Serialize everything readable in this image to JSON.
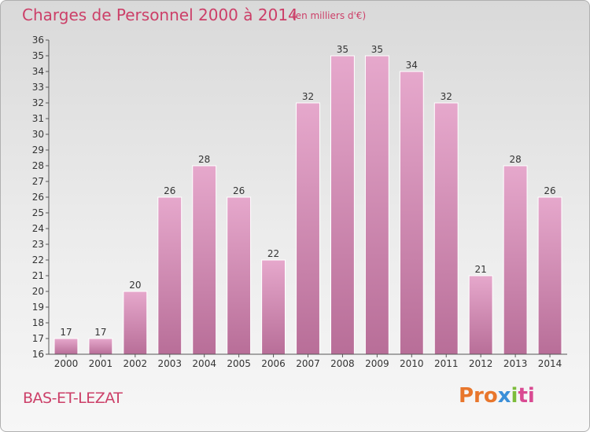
{
  "header": {
    "title": "Charges de Personnel 2000 à 2014",
    "subtitle": "(en milliers d'€)"
  },
  "footer": {
    "commune": "BAS-ET-LEZAT",
    "logo_parts": [
      "Pro",
      "x",
      "i",
      "ti"
    ]
  },
  "colors": {
    "bar_top": "#e6a8cc",
    "bar_bottom": "#b86e98",
    "title": "#cc3f68"
  },
  "chart_data": {
    "type": "bar",
    "title": "Charges de Personnel 2000 à 2014",
    "subtitle": "(en milliers d'€)",
    "xlabel": "",
    "ylabel": "",
    "categories": [
      "2000",
      "2001",
      "2002",
      "2003",
      "2004",
      "2005",
      "2006",
      "2007",
      "2008",
      "2009",
      "2010",
      "2011",
      "2012",
      "2013",
      "2014"
    ],
    "values": [
      17,
      17,
      20,
      26,
      28,
      26,
      22,
      32,
      35,
      35,
      34,
      32,
      21,
      28,
      26
    ],
    "ylim": [
      16,
      36
    ],
    "yticks": [
      16,
      17,
      18,
      19,
      20,
      21,
      22,
      23,
      24,
      25,
      26,
      27,
      28,
      29,
      30,
      31,
      32,
      33,
      34,
      35,
      36
    ],
    "grid": false,
    "legend": "none"
  }
}
